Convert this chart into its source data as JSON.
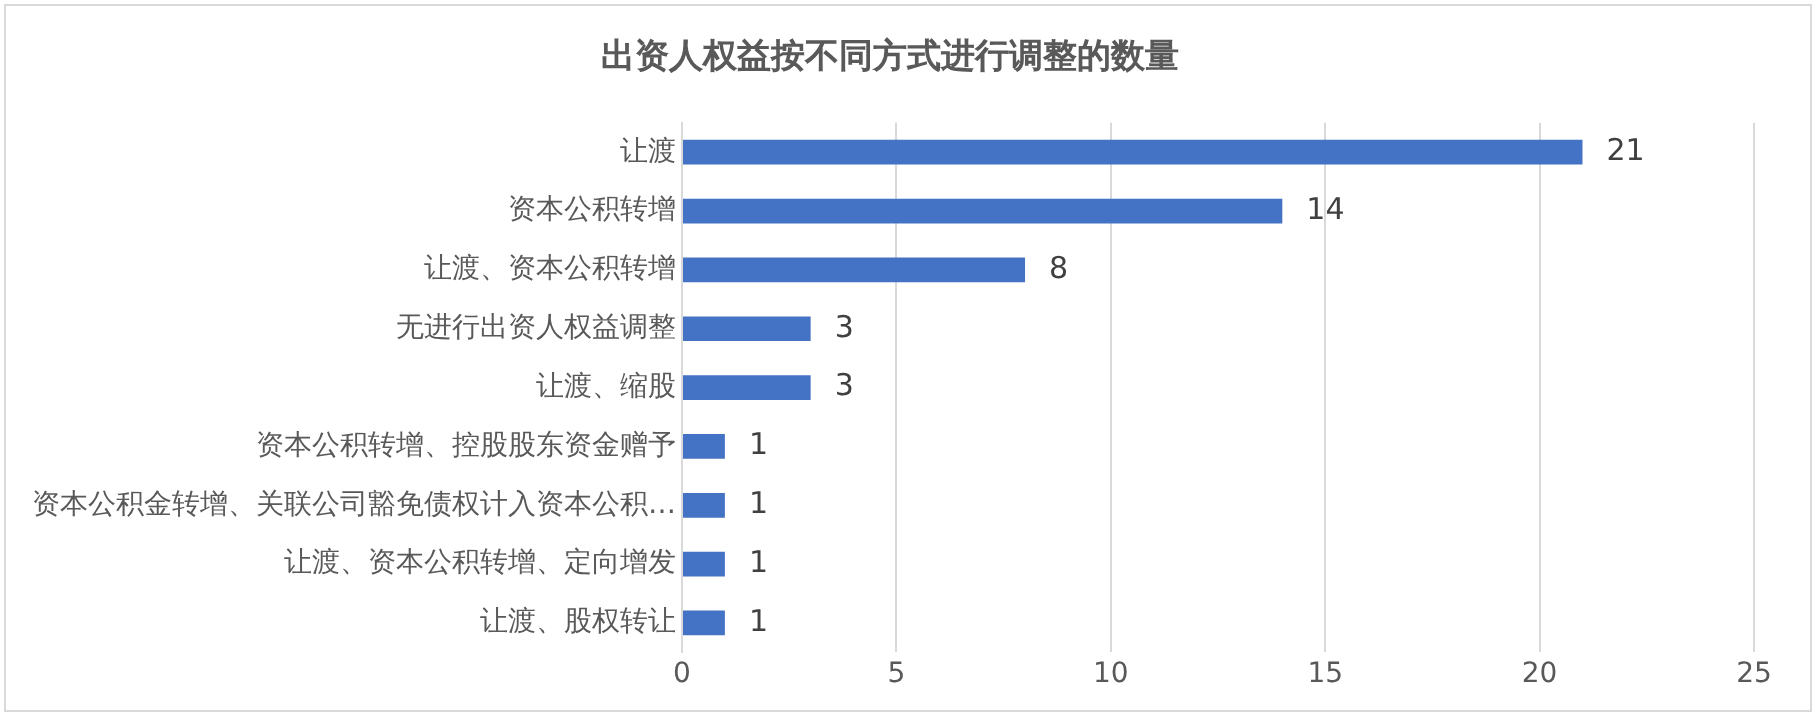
{
  "chart_data": {
    "type": "bar",
    "orientation": "horizontal",
    "title": "出资人权益按不同方式进行调整的数量",
    "categories": [
      "让渡",
      "资本公积转增",
      "让渡、资本公积转增",
      "无进行出资人权益调整",
      "让渡、缩股",
      "资本公积转增、控股股东资金赠予",
      "资本公积金转增、关联公司豁免债权计入资本公积…",
      "让渡、资本公积转增、定向增发",
      "让渡、股权转让"
    ],
    "values": [
      21,
      14,
      8,
      3,
      3,
      1,
      1,
      1,
      1
    ],
    "color": "#4472c4",
    "xlim": [
      0,
      25
    ],
    "xticks": [
      0,
      5,
      10,
      15,
      20,
      25
    ],
    "grid": "x",
    "data_labels": true,
    "legend": false
  }
}
